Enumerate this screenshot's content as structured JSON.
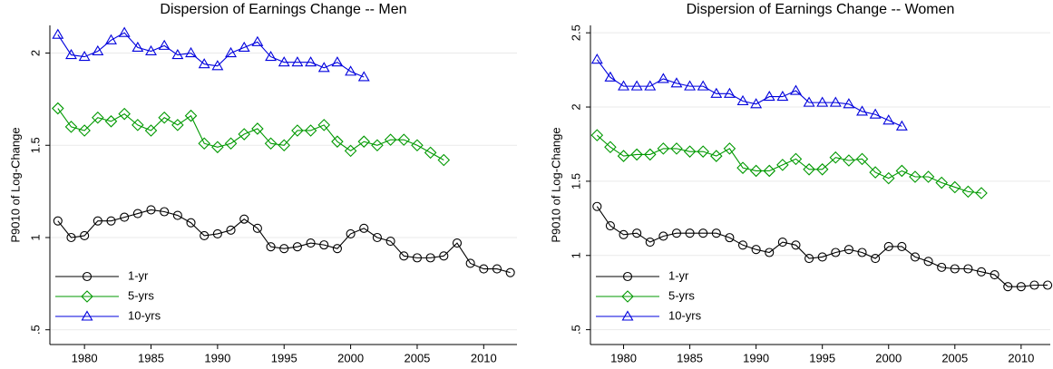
{
  "chart_data": [
    {
      "type": "line",
      "title": "Dispersion of Earnings Change -- Men",
      "y_label": "P9010 of Log-Change",
      "x": [
        1978,
        1979,
        1980,
        1981,
        1982,
        1983,
        1984,
        1985,
        1986,
        1987,
        1988,
        1989,
        1990,
        1991,
        1992,
        1993,
        1994,
        1995,
        1996,
        1997,
        1998,
        1999,
        2000,
        2001,
        2002,
        2003,
        2004,
        2005,
        2006,
        2007,
        2008,
        2009,
        2010,
        2011,
        2012
      ],
      "xlim": [
        1977.4,
        2012.5
      ],
      "xticks": [
        1980,
        1985,
        1990,
        1995,
        2000,
        2005,
        2010
      ],
      "ylim": [
        0.42,
        2.15
      ],
      "yticks": [
        {
          "value": 0.5,
          "label": ".5"
        },
        1,
        1.5,
        2
      ],
      "grid": true,
      "legend": "lower-left",
      "series": [
        {
          "name": "1-yr",
          "color": "#000000",
          "marker": "circle",
          "values": [
            1.09,
            1.0,
            1.01,
            1.09,
            1.09,
            1.11,
            1.13,
            1.15,
            1.14,
            1.12,
            1.08,
            1.01,
            1.02,
            1.04,
            1.1,
            1.05,
            0.95,
            0.94,
            0.95,
            0.97,
            0.96,
            0.94,
            1.02,
            1.05,
            1.0,
            0.98,
            0.9,
            0.89,
            0.89,
            0.9,
            0.97,
            0.86,
            0.83,
            0.83,
            0.81
          ]
        },
        {
          "name": "5-yrs",
          "color": "#009900",
          "marker": "diamond",
          "values": [
            1.7,
            1.6,
            1.58,
            1.65,
            1.63,
            1.67,
            1.61,
            1.58,
            1.65,
            1.61,
            1.66,
            1.51,
            1.49,
            1.51,
            1.56,
            1.59,
            1.51,
            1.5,
            1.58,
            1.58,
            1.61,
            1.52,
            1.47,
            1.52,
            1.5,
            1.53,
            1.53,
            1.5,
            1.46,
            1.42,
            null,
            null,
            null,
            null,
            null
          ]
        },
        {
          "name": "10-yrs",
          "color": "#0000dd",
          "marker": "triangle",
          "values": [
            2.1,
            1.99,
            1.98,
            2.01,
            2.07,
            2.11,
            2.03,
            2.01,
            2.04,
            1.99,
            2.0,
            1.94,
            1.93,
            2.0,
            2.03,
            2.06,
            1.98,
            1.95,
            1.95,
            1.95,
            1.92,
            1.95,
            1.9,
            1.87,
            null,
            null,
            null,
            null,
            null,
            null,
            null,
            null,
            null,
            null,
            null
          ]
        }
      ]
    },
    {
      "type": "line",
      "title": "Dispersion of Earnings Change -- Women",
      "y_label": "P9010 of Log-Change",
      "x": [
        1978,
        1979,
        1980,
        1981,
        1982,
        1983,
        1984,
        1985,
        1986,
        1987,
        1988,
        1989,
        1990,
        1991,
        1992,
        1993,
        1994,
        1995,
        1996,
        1997,
        1998,
        1999,
        2000,
        2001,
        2002,
        2003,
        2004,
        2005,
        2006,
        2007,
        2008,
        2009,
        2010,
        2011,
        2012
      ],
      "xlim": [
        1977.5,
        2012.2
      ],
      "xticks": [
        1980,
        1985,
        1990,
        1995,
        2000,
        2005,
        2010
      ],
      "ylim": [
        0.4,
        2.55
      ],
      "yticks": [
        {
          "value": 0.5,
          "label": ".5"
        },
        1,
        1.5,
        2,
        2.5
      ],
      "grid": true,
      "legend": "lower-left",
      "series": [
        {
          "name": "1-yr",
          "color": "#000000",
          "marker": "circle",
          "values": [
            1.33,
            1.2,
            1.14,
            1.15,
            1.09,
            1.13,
            1.15,
            1.15,
            1.15,
            1.15,
            1.12,
            1.07,
            1.04,
            1.02,
            1.09,
            1.07,
            0.98,
            0.99,
            1.02,
            1.04,
            1.02,
            0.98,
            1.06,
            1.06,
            0.99,
            0.96,
            0.92,
            0.91,
            0.91,
            0.89,
            0.87,
            0.79,
            0.79,
            0.8,
            0.8
          ]
        },
        {
          "name": "5-yrs",
          "color": "#009900",
          "marker": "diamond",
          "values": [
            1.81,
            1.73,
            1.67,
            1.68,
            1.68,
            1.72,
            1.72,
            1.7,
            1.7,
            1.67,
            1.72,
            1.59,
            1.57,
            1.57,
            1.61,
            1.65,
            1.58,
            1.58,
            1.66,
            1.64,
            1.65,
            1.56,
            1.52,
            1.57,
            1.53,
            1.53,
            1.49,
            1.46,
            1.43,
            1.42,
            null,
            null,
            null,
            null,
            null
          ]
        },
        {
          "name": "10-yrs",
          "color": "#0000dd",
          "marker": "triangle",
          "values": [
            2.32,
            2.2,
            2.14,
            2.14,
            2.14,
            2.19,
            2.16,
            2.14,
            2.14,
            2.09,
            2.09,
            2.04,
            2.02,
            2.07,
            2.07,
            2.11,
            2.03,
            2.03,
            2.03,
            2.02,
            1.97,
            1.95,
            1.91,
            1.87,
            null,
            null,
            null,
            null,
            null,
            null,
            null,
            null,
            null,
            null,
            null
          ]
        }
      ]
    }
  ]
}
